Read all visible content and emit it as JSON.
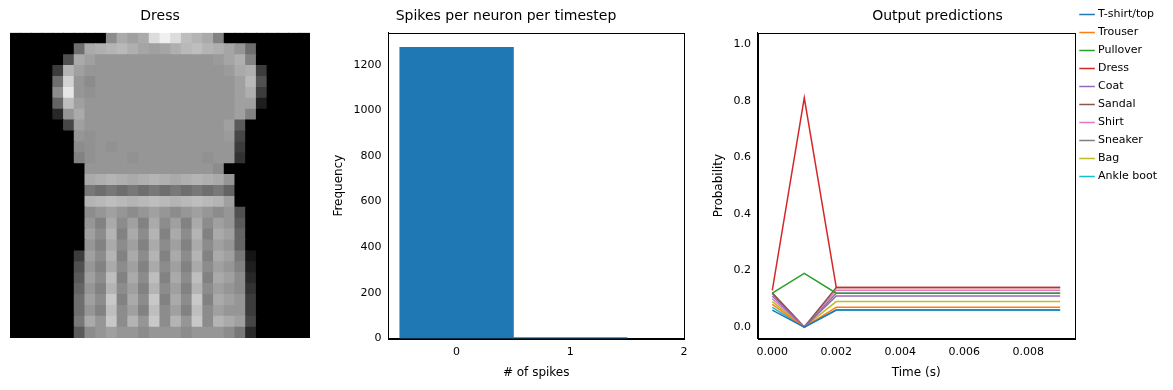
{
  "chart_data": [
    {
      "type": "image",
      "title": "Dress",
      "tick_labels": false,
      "color_range": [
        0,
        255
      ],
      "pixels": [
        [
          0,
          0,
          0,
          0,
          0,
          0,
          0,
          0,
          0,
          140,
          170,
          160,
          170,
          220,
          240,
          220,
          190,
          180,
          170,
          130,
          0,
          0,
          0,
          0,
          0,
          0,
          0,
          0
        ],
        [
          0,
          0,
          0,
          0,
          0,
          0,
          110,
          170,
          175,
          180,
          185,
          175,
          165,
          160,
          165,
          175,
          185,
          190,
          180,
          175,
          165,
          150,
          110,
          0,
          0,
          0,
          0,
          0
        ],
        [
          0,
          0,
          0,
          0,
          0,
          80,
          170,
          160,
          150,
          150,
          150,
          150,
          150,
          150,
          150,
          150,
          150,
          150,
          150,
          155,
          165,
          175,
          130,
          0,
          0,
          0,
          0,
          0
        ],
        [
          0,
          0,
          0,
          0,
          60,
          180,
          160,
          150,
          150,
          150,
          150,
          150,
          150,
          150,
          150,
          150,
          150,
          150,
          150,
          150,
          155,
          170,
          175,
          60,
          0,
          0,
          0,
          0
        ],
        [
          0,
          0,
          0,
          0,
          110,
          210,
          150,
          140,
          150,
          150,
          150,
          150,
          150,
          150,
          150,
          150,
          150,
          150,
          150,
          150,
          150,
          160,
          185,
          80,
          0,
          0,
          0,
          0
        ],
        [
          0,
          0,
          0,
          0,
          140,
          230,
          150,
          145,
          150,
          150,
          150,
          150,
          150,
          150,
          150,
          150,
          150,
          150,
          150,
          150,
          150,
          160,
          175,
          60,
          0,
          0,
          0,
          0
        ],
        [
          0,
          0,
          0,
          0,
          100,
          190,
          160,
          150,
          150,
          150,
          150,
          150,
          150,
          150,
          150,
          150,
          150,
          150,
          150,
          150,
          150,
          160,
          160,
          30,
          0,
          0,
          0,
          0
        ],
        [
          0,
          0,
          0,
          0,
          40,
          150,
          170,
          150,
          150,
          150,
          150,
          150,
          150,
          150,
          150,
          150,
          150,
          150,
          150,
          150,
          150,
          160,
          130,
          0,
          0,
          0,
          0,
          0
        ],
        [
          0,
          0,
          0,
          0,
          0,
          70,
          160,
          150,
          150,
          150,
          150,
          150,
          150,
          150,
          150,
          150,
          150,
          150,
          150,
          150,
          160,
          90,
          0,
          0,
          0,
          0,
          0,
          0
        ],
        [
          0,
          0,
          0,
          0,
          0,
          0,
          150,
          145,
          150,
          150,
          150,
          150,
          150,
          150,
          150,
          150,
          150,
          150,
          150,
          150,
          155,
          70,
          0,
          0,
          0,
          0,
          0,
          0
        ],
        [
          0,
          0,
          0,
          0,
          0,
          0,
          140,
          145,
          150,
          145,
          150,
          150,
          150,
          150,
          150,
          150,
          150,
          150,
          150,
          150,
          150,
          60,
          0,
          0,
          0,
          0,
          0,
          0
        ],
        [
          0,
          0,
          0,
          0,
          0,
          0,
          130,
          145,
          150,
          150,
          150,
          145,
          150,
          150,
          150,
          150,
          150,
          150,
          145,
          150,
          150,
          50,
          0,
          0,
          0,
          0,
          0,
          0
        ],
        [
          0,
          0,
          0,
          0,
          0,
          0,
          0,
          150,
          150,
          150,
          150,
          150,
          150,
          150,
          150,
          150,
          150,
          150,
          150,
          140,
          0,
          0,
          0,
          0,
          0,
          0,
          0,
          0
        ],
        [
          0,
          0,
          0,
          0,
          0,
          0,
          0,
          170,
          175,
          180,
          175,
          170,
          175,
          180,
          175,
          170,
          175,
          180,
          175,
          170,
          150,
          0,
          0,
          0,
          0,
          0,
          0,
          0
        ],
        [
          0,
          0,
          0,
          0,
          0,
          0,
          0,
          120,
          110,
          120,
          110,
          120,
          110,
          120,
          110,
          120,
          110,
          120,
          110,
          120,
          100,
          0,
          0,
          0,
          0,
          0,
          0,
          0
        ],
        [
          0,
          0,
          0,
          0,
          0,
          0,
          0,
          180,
          185,
          190,
          185,
          180,
          185,
          190,
          185,
          180,
          185,
          190,
          185,
          180,
          160,
          0,
          0,
          0,
          0,
          0,
          0,
          0
        ],
        [
          0,
          0,
          0,
          0,
          0,
          0,
          0,
          140,
          150,
          160,
          150,
          140,
          150,
          160,
          150,
          140,
          150,
          160,
          150,
          140,
          150,
          80,
          0,
          0,
          0,
          0,
          0,
          0
        ],
        [
          0,
          0,
          0,
          0,
          0,
          0,
          0,
          150,
          130,
          170,
          140,
          160,
          130,
          170,
          140,
          160,
          130,
          170,
          140,
          160,
          150,
          90,
          0,
          0,
          0,
          0,
          0,
          0
        ],
        [
          0,
          0,
          0,
          0,
          0,
          0,
          0,
          160,
          140,
          180,
          130,
          170,
          140,
          180,
          130,
          170,
          140,
          180,
          130,
          170,
          160,
          100,
          0,
          0,
          0,
          0,
          0,
          0
        ],
        [
          0,
          0,
          0,
          0,
          0,
          0,
          0,
          150,
          130,
          170,
          140,
          160,
          130,
          170,
          140,
          160,
          130,
          170,
          140,
          160,
          150,
          100,
          0,
          0,
          0,
          0,
          0,
          0
        ],
        [
          0,
          0,
          0,
          0,
          0,
          0,
          60,
          160,
          140,
          180,
          130,
          170,
          140,
          180,
          130,
          170,
          140,
          180,
          130,
          170,
          160,
          120,
          20,
          0,
          0,
          0,
          0,
          0
        ],
        [
          0,
          0,
          0,
          0,
          0,
          0,
          80,
          150,
          130,
          170,
          140,
          160,
          130,
          170,
          140,
          160,
          130,
          170,
          140,
          160,
          150,
          130,
          30,
          0,
          0,
          0,
          0,
          0
        ],
        [
          0,
          0,
          0,
          0,
          0,
          0,
          90,
          160,
          140,
          190,
          130,
          170,
          140,
          190,
          130,
          170,
          140,
          190,
          130,
          170,
          160,
          140,
          40,
          0,
          0,
          0,
          0,
          0
        ],
        [
          0,
          0,
          0,
          0,
          0,
          0,
          100,
          150,
          130,
          180,
          140,
          160,
          130,
          180,
          140,
          160,
          130,
          180,
          140,
          160,
          150,
          140,
          50,
          0,
          0,
          0,
          0,
          0
        ],
        [
          0,
          0,
          0,
          0,
          0,
          0,
          110,
          160,
          140,
          200,
          130,
          170,
          140,
          200,
          130,
          170,
          140,
          200,
          130,
          170,
          160,
          150,
          60,
          0,
          0,
          0,
          0,
          0
        ],
        [
          0,
          0,
          0,
          0,
          0,
          0,
          110,
          150,
          130,
          190,
          140,
          160,
          130,
          190,
          140,
          160,
          130,
          190,
          140,
          160,
          150,
          150,
          60,
          0,
          0,
          0,
          0,
          0
        ],
        [
          0,
          0,
          0,
          0,
          0,
          0,
          120,
          170,
          150,
          200,
          140,
          180,
          150,
          200,
          140,
          180,
          150,
          200,
          140,
          180,
          170,
          160,
          70,
          0,
          0,
          0,
          0,
          0
        ],
        [
          0,
          0,
          0,
          0,
          0,
          0,
          90,
          140,
          150,
          160,
          150,
          150,
          140,
          150,
          150,
          150,
          140,
          150,
          150,
          150,
          140,
          120,
          40,
          0,
          0,
          0,
          0,
          0
        ]
      ]
    },
    {
      "type": "histogram",
      "title": "Spikes per neuron per timestep",
      "x_label": "# of spikes",
      "y_label": "Frequency",
      "bins": [
        -0.5,
        0.5,
        1.5
      ],
      "counts": [
        1276,
        4
      ],
      "color": "#1f77b4",
      "xlim": [
        -0.6,
        2
      ],
      "xticks": [
        0,
        1,
        2
      ],
      "ylim": [
        0,
        1340
      ],
      "yticks": [
        0,
        200,
        400,
        600,
        800,
        1000,
        1200
      ],
      "grid": false
    },
    {
      "type": "line",
      "title": "Output predictions",
      "x_label": "Time (s)",
      "y_label": "Probability",
      "x": [
        0,
        0.001,
        0.002,
        0.003,
        0.004,
        0.005,
        0.006,
        0.007,
        0.008,
        0.009
      ],
      "series": [
        {
          "name": "T-shirt/top",
          "color": "#1f77b4",
          "values": [
            0.06,
            0,
            0.06,
            0.06,
            0.06,
            0.06,
            0.06,
            0.06,
            0.06,
            0.06
          ]
        },
        {
          "name": "Trouser",
          "color": "#ff7f0e",
          "values": [
            0.08,
            0,
            0.07,
            0.07,
            0.07,
            0.07,
            0.07,
            0.07,
            0.07,
            0.07
          ]
        },
        {
          "name": "Pullover",
          "color": "#2ca02c",
          "values": [
            0.12,
            0.19,
            0.12,
            0.12,
            0.12,
            0.12,
            0.12,
            0.12,
            0.12,
            0.12
          ]
        },
        {
          "name": "Dress",
          "color": "#d62728",
          "values": [
            0.13,
            0.81,
            0.14,
            0.14,
            0.14,
            0.14,
            0.14,
            0.14,
            0.14,
            0.14
          ]
        },
        {
          "name": "Coat",
          "color": "#9467bd",
          "values": [
            0.11,
            0,
            0.11,
            0.11,
            0.11,
            0.11,
            0.11,
            0.11,
            0.11,
            0.11
          ]
        },
        {
          "name": "Sandal",
          "color": "#8c564b",
          "values": [
            0.12,
            0,
            0.14,
            0.14,
            0.14,
            0.14,
            0.14,
            0.14,
            0.14,
            0.14
          ]
        },
        {
          "name": "Shirt",
          "color": "#e377c2",
          "values": [
            0.1,
            0,
            0.13,
            0.13,
            0.13,
            0.13,
            0.13,
            0.13,
            0.13,
            0.13
          ]
        },
        {
          "name": "Sneaker",
          "color": "#7f7f7f",
          "values": [
            0.12,
            0,
            0.12,
            0.12,
            0.12,
            0.12,
            0.12,
            0.12,
            0.12,
            0.12
          ]
        },
        {
          "name": "Bag",
          "color": "#bcbd22",
          "values": [
            0.09,
            0,
            0.09,
            0.09,
            0.09,
            0.09,
            0.09,
            0.09,
            0.09,
            0.09
          ]
        },
        {
          "name": "Ankle boot",
          "color": "#17becf",
          "values": [
            0.07,
            0,
            0.06,
            0.06,
            0.06,
            0.06,
            0.06,
            0.06,
            0.06,
            0.06
          ]
        }
      ],
      "xlim": [
        -0.00045,
        0.00945
      ],
      "xticks": [
        {
          "value": 0,
          "label": "0.000"
        },
        {
          "value": 0.002,
          "label": "0.002"
        },
        {
          "value": 0.004,
          "label": "0.004"
        },
        {
          "value": 0.006,
          "label": "0.006"
        },
        {
          "value": 0.008,
          "label": "0.008"
        }
      ],
      "ylim": [
        -0.04,
        1.04
      ],
      "yticks": [
        {
          "value": 0,
          "label": "0.0"
        },
        {
          "value": 0.2,
          "label": "0.2"
        },
        {
          "value": 0.4,
          "label": "0.4"
        },
        {
          "value": 0.6,
          "label": "0.6"
        },
        {
          "value": 0.8,
          "label": "0.8"
        },
        {
          "value": 1,
          "label": "1.0"
        }
      ],
      "grid": false,
      "legend": "right"
    }
  ]
}
